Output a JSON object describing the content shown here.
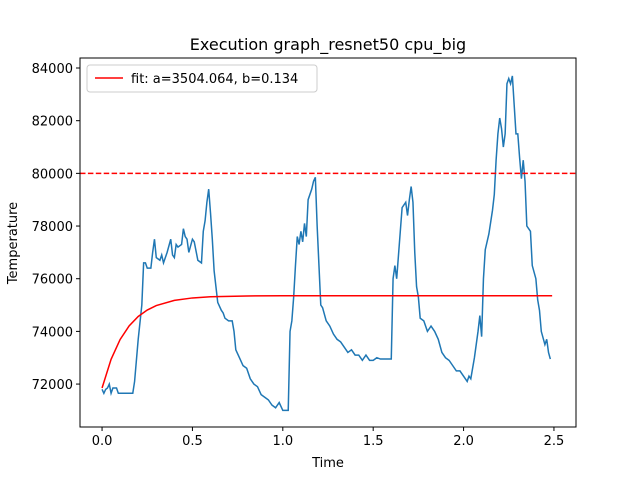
{
  "chart_data": {
    "type": "line",
    "title": "Execution graph_resnet50 cpu_big",
    "x_label": "Time",
    "y_label": "Temperature",
    "xlim": [
      -0.122,
      2.622
    ],
    "ylim": [
      70370,
      84380
    ],
    "xticks": [
      {
        "value": 0,
        "label": "0.0"
      },
      0.5,
      {
        "value": 1,
        "label": "1.0"
      },
      1.5,
      {
        "value": 2,
        "label": "2.0"
      },
      2.5
    ],
    "yticks": [
      72000,
      74000,
      76000,
      78000,
      80000,
      82000,
      84000
    ],
    "legend": "upper left",
    "hlines": [
      {
        "value": 80000,
        "color": "#ff0000",
        "style": "dashed"
      }
    ],
    "series": [
      {
        "color": "#1f77b4",
        "x": [
          0,
          0.01,
          0.02,
          0.03,
          0.04,
          0.05,
          0.06,
          0.08,
          0.09,
          0.17,
          0.18,
          0.2,
          0.22,
          0.23,
          0.24,
          0.25,
          0.27,
          0.28,
          0.29,
          0.3,
          0.32,
          0.33,
          0.34,
          0.36,
          0.38,
          0.39,
          0.4,
          0.41,
          0.42,
          0.44,
          0.45,
          0.46,
          0.47,
          0.48,
          0.5,
          0.51,
          0.53,
          0.55,
          0.56,
          0.57,
          0.58,
          0.59,
          0.6,
          0.61,
          0.62,
          0.63,
          0.64,
          0.66,
          0.67,
          0.68,
          0.7,
          0.72,
          0.73,
          0.74,
          0.76,
          0.78,
          0.8,
          0.82,
          0.84,
          0.86,
          0.88,
          0.9,
          0.92,
          0.94,
          0.96,
          0.98,
          1.0,
          1.03,
          1.04,
          1.05,
          1.06,
          1.07,
          1.08,
          1.09,
          1.1,
          1.11,
          1.12,
          1.13,
          1.14,
          1.16,
          1.17,
          1.18,
          1.19,
          1.2,
          1.21,
          1.22,
          1.24,
          1.26,
          1.28,
          1.3,
          1.32,
          1.34,
          1.36,
          1.38,
          1.4,
          1.42,
          1.44,
          1.46,
          1.48,
          1.5,
          1.52,
          1.54,
          1.56,
          1.58,
          1.6,
          1.61,
          1.62,
          1.63,
          1.65,
          1.66,
          1.68,
          1.69,
          1.7,
          1.71,
          1.72,
          1.73,
          1.74,
          1.75,
          1.76,
          1.78,
          1.8,
          1.82,
          1.84,
          1.86,
          1.88,
          1.9,
          1.92,
          1.94,
          1.96,
          1.98,
          2.0,
          2.02,
          2.03,
          2.04,
          2.06,
          2.08,
          2.09,
          2.1,
          2.11,
          2.12,
          2.14,
          2.16,
          2.17,
          2.18,
          2.19,
          2.2,
          2.21,
          2.22,
          2.23,
          2.24,
          2.25,
          2.26,
          2.27,
          2.28,
          2.29,
          2.3,
          2.31,
          2.32,
          2.33,
          2.34,
          2.35,
          2.37,
          2.38,
          2.4,
          2.41,
          2.42,
          2.43,
          2.45,
          2.46,
          2.47,
          2.48
        ],
        "values": [
          71800,
          71650,
          71800,
          71850,
          72000,
          71650,
          71850,
          71850,
          71650,
          71650,
          72100,
          73700,
          75000,
          76600,
          76600,
          76400,
          76400,
          77000,
          77500,
          76800,
          76700,
          76900,
          76600,
          77000,
          77500,
          76900,
          76800,
          77300,
          77200,
          77300,
          77900,
          77600,
          77500,
          77000,
          77500,
          77400,
          76700,
          76600,
          77800,
          78200,
          78900,
          79400,
          78500,
          77500,
          76300,
          75700,
          75100,
          74800,
          74700,
          74500,
          74400,
          74400,
          74000,
          73300,
          73000,
          72700,
          72600,
          72200,
          72000,
          71900,
          71600,
          71500,
          71400,
          71200,
          71100,
          71300,
          71000,
          71000,
          74000,
          74400,
          75300,
          76500,
          77600,
          77300,
          77800,
          77400,
          78100,
          77600,
          79000,
          79400,
          79700,
          79850,
          78000,
          76500,
          75000,
          74900,
          74400,
          74200,
          73900,
          73700,
          73600,
          73400,
          73200,
          73300,
          73100,
          73100,
          72900,
          73100,
          72900,
          72900,
          73000,
          72950,
          72950,
          72950,
          72950,
          76000,
          76500,
          76000,
          77800,
          78700,
          78900,
          78400,
          79000,
          79500,
          78900,
          77000,
          75700,
          75300,
          74500,
          74400,
          74000,
          74200,
          74000,
          73700,
          73200,
          73000,
          72900,
          72700,
          72500,
          72500,
          72300,
          72100,
          72300,
          72200,
          73000,
          74000,
          74600,
          73800,
          76000,
          77100,
          77700,
          78600,
          79200,
          80500,
          81500,
          82100,
          81700,
          81000,
          81500,
          83400,
          83600,
          83400,
          83700,
          82600,
          81500,
          81500,
          80600,
          79800,
          80500,
          79700,
          78000,
          77800,
          76500,
          76000,
          75200,
          74800,
          74000,
          73500,
          73700,
          73200,
          72950
        ]
      },
      {
        "name": "fit: a=3504.064, b=0.134",
        "color": "#ff0000",
        "x": [
          0,
          0.05,
          0.1,
          0.15,
          0.2,
          0.25,
          0.3,
          0.4,
          0.5,
          0.6,
          0.8,
          1.0,
          2.49
        ],
        "values": [
          71850,
          72940,
          73693,
          74210,
          74566,
          74811,
          74980,
          75177,
          75270,
          75314,
          75345,
          75352,
          75354
        ]
      }
    ]
  }
}
